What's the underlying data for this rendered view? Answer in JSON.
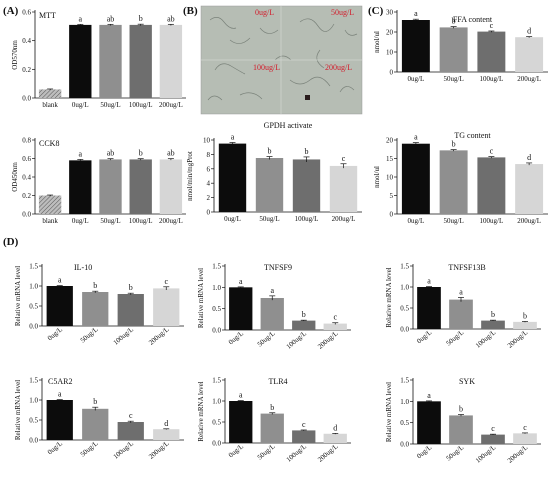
{
  "figure": {
    "panel_labels": [
      "(A)",
      "(B)",
      "(C)",
      "(D)"
    ],
    "micrograph": {
      "labels": [
        "0ug/L",
        "50ug/L",
        "100ug/L",
        "200ug/L"
      ],
      "label_color": "#d21d2c",
      "background": "#b6bdb4"
    },
    "colors": {
      "blank": "#c9c9c9",
      "bar0": "#0c0c0c",
      "bar1": "#8f8f8f",
      "bar2": "#6e6e6e",
      "bar3": "#d6d6d6"
    }
  },
  "chart_data": [
    {
      "id": "mtt",
      "type": "bar",
      "title": "MTT",
      "xlabel": "",
      "ylabel": "OD570nm",
      "categories": [
        "blank",
        "0ug/L",
        "50ug/L",
        "100ug/L",
        "200ug/L"
      ],
      "values": [
        0.06,
        0.51,
        0.51,
        0.51,
        0.51
      ],
      "errors": [
        0.003,
        0.004,
        0.004,
        0.005,
        0.004
      ],
      "letters": [
        "",
        "a",
        "ab",
        "b",
        "ab"
      ],
      "ylim": [
        0,
        0.6
      ],
      "yticks": [
        "0.0",
        "0.2",
        "0.4",
        "0.6"
      ],
      "yticks_values": [
        0,
        0.2,
        0.4,
        0.6
      ],
      "legend": "none"
    },
    {
      "id": "cck8",
      "type": "bar",
      "title": "CCK8",
      "xlabel": "",
      "ylabel": "OD450nm",
      "categories": [
        "blank",
        "0ug/L",
        "50ug/L",
        "100ug/L",
        "200ug/L"
      ],
      "values": [
        0.2,
        0.58,
        0.59,
        0.59,
        0.59
      ],
      "errors": [
        0.005,
        0.01,
        0.008,
        0.008,
        0.008
      ],
      "letters": [
        "",
        "a",
        "ab",
        "b",
        "ab"
      ],
      "ylim": [
        0,
        0.8
      ],
      "yticks": [
        "0.0",
        "0.2",
        "0.4",
        "0.6",
        "0.8"
      ],
      "yticks_values": [
        0,
        0.2,
        0.4,
        0.6,
        0.8
      ],
      "legend": "none"
    },
    {
      "id": "ffa",
      "type": "bar",
      "title": "FFA content",
      "xlabel": "",
      "ylabel": "nmol/ul",
      "categories": [
        "0ug/L",
        "50ug/L",
        "100ug/L",
        "200ug/L"
      ],
      "values": [
        26,
        22.3,
        20.2,
        17.4
      ],
      "errors": [
        0.4,
        0.4,
        0.3,
        0.3
      ],
      "letters": [
        "a",
        "b",
        "c",
        "d"
      ],
      "ylim": [
        0,
        30
      ],
      "yticks": [
        "0",
        "10",
        "20",
        "30"
      ],
      "yticks_values": [
        0,
        10,
        20,
        30
      ],
      "legend": "none"
    },
    {
      "id": "gpdh",
      "type": "bar",
      "title": "GPDH activate",
      "xlabel": "",
      "ylabel": "nmol/min/mgProt",
      "categories": [
        "0ug/L",
        "50ug/L",
        "100ug/L",
        "200ug/L"
      ],
      "values": [
        9.5,
        7.5,
        7.3,
        6.4
      ],
      "errors": [
        0.15,
        0.2,
        0.35,
        0.3
      ],
      "letters": [
        "a",
        "b",
        "b",
        "c"
      ],
      "ylim": [
        0,
        10
      ],
      "yticks": [
        "0",
        "2",
        "4",
        "6",
        "8",
        "10"
      ],
      "yticks_values": [
        0,
        2,
        4,
        6,
        8,
        10
      ],
      "legend": "none"
    },
    {
      "id": "tg",
      "type": "bar",
      "title": "TG content",
      "xlabel": "",
      "ylabel": "nmol/ul",
      "categories": [
        "0ug/L",
        "50ug/L",
        "100ug/L",
        "200ug/L"
      ],
      "values": [
        19,
        17.2,
        15.3,
        13.5
      ],
      "errors": [
        0.3,
        0.2,
        0.2,
        0.3
      ],
      "letters": [
        "a",
        "b",
        "c",
        "d"
      ],
      "ylim": [
        0,
        20
      ],
      "yticks": [
        "0",
        "5",
        "10",
        "15",
        "20"
      ],
      "yticks_values": [
        0,
        5,
        10,
        15,
        20
      ],
      "legend": "none"
    },
    {
      "id": "il10",
      "type": "bar",
      "title": "IL-10",
      "xlabel": "",
      "ylabel": "Relative mRNA level",
      "categories": [
        "0ug/L",
        "50ug/L",
        "100ug/L",
        "200ug/L"
      ],
      "values": [
        1.0,
        0.85,
        0.8,
        0.94
      ],
      "errors": [
        0.01,
        0.02,
        0.02,
        0.04
      ],
      "letters": [
        "a",
        "b",
        "b",
        "c"
      ],
      "ylim": [
        0,
        1.5
      ],
      "yticks": [
        "0.0",
        "0.5",
        "1.0",
        "1.5"
      ],
      "yticks_values": [
        0,
        0.5,
        1.0,
        1.5
      ],
      "legend": "none"
    },
    {
      "id": "tnfsf9",
      "type": "bar",
      "title": "TNFSF9",
      "xlabel": "",
      "ylabel": "Relative mRNA level",
      "categories": [
        "0ug/L",
        "50ug/L",
        "100ug/L",
        "200ug/L"
      ],
      "values": [
        1.0,
        0.75,
        0.22,
        0.15
      ],
      "errors": [
        0.01,
        0.05,
        0.01,
        0.02
      ],
      "letters": [
        "a",
        "a",
        "b",
        "c"
      ],
      "ylim": [
        0,
        1.5
      ],
      "yticks": [
        "0.0",
        "0.5",
        "1.0",
        "1.5"
      ],
      "yticks_values": [
        0,
        0.5,
        1.0,
        1.5
      ],
      "legend": "none"
    },
    {
      "id": "tnfsf13b",
      "type": "bar",
      "title": "TNFSF13B",
      "xlabel": "",
      "ylabel": "Relative mRNA level",
      "categories": [
        "0ug/L",
        "50ug/L",
        "100ug/L",
        "200ug/L"
      ],
      "values": [
        1.0,
        0.7,
        0.2,
        0.17
      ],
      "errors": [
        0.01,
        0.05,
        0.01,
        0.01
      ],
      "letters": [
        "a",
        "a",
        "b",
        "b"
      ],
      "ylim": [
        0,
        1.5
      ],
      "yticks": [
        "0.0",
        "0.5",
        "1.0",
        "1.5"
      ],
      "yticks_values": [
        0,
        0.5,
        1.0,
        1.5
      ],
      "legend": "none"
    },
    {
      "id": "c5ar2",
      "type": "bar",
      "title": "C5AR2",
      "xlabel": "",
      "ylabel": "Relative mRNA level",
      "categories": [
        "0ug/L",
        "50ug/L",
        "100ug/L",
        "200ug/L"
      ],
      "values": [
        1.0,
        0.78,
        0.45,
        0.27
      ],
      "errors": [
        0.01,
        0.04,
        0.02,
        0.01
      ],
      "letters": [
        "a",
        "b",
        "c",
        "d"
      ],
      "ylim": [
        0,
        1.5
      ],
      "yticks": [
        "0.0",
        "0.5",
        "1.0",
        "1.5"
      ],
      "yticks_values": [
        0,
        0.5,
        1.0,
        1.5
      ],
      "legend": "none"
    },
    {
      "id": "tlr4",
      "type": "bar",
      "title": "TLR4",
      "xlabel": "",
      "ylabel": "Relative mRNA level",
      "categories": [
        "0ug/L",
        "50ug/L",
        "100ug/L",
        "200ug/L"
      ],
      "values": [
        1.0,
        0.7,
        0.3,
        0.22
      ],
      "errors": [
        0.01,
        0.02,
        0.01,
        0.01
      ],
      "letters": [
        "a",
        "b",
        "c",
        "d"
      ],
      "ylim": [
        0,
        1.5
      ],
      "yticks": [
        "0.0",
        "0.5",
        "1.0",
        "1.5"
      ],
      "yticks_values": [
        0,
        0.5,
        1.0,
        1.5
      ],
      "legend": "none"
    },
    {
      "id": "syk",
      "type": "bar",
      "title": "SYK",
      "xlabel": "",
      "ylabel": "Relative mRNA level",
      "categories": [
        "0ug/L",
        "50ug/L",
        "100ug/L",
        "200ug/L"
      ],
      "values": [
        1.0,
        0.67,
        0.22,
        0.25
      ],
      "errors": [
        0.01,
        0.02,
        0.01,
        0.01
      ],
      "letters": [
        "a",
        "b",
        "c",
        "c"
      ],
      "ylim": [
        0,
        1.5
      ],
      "yticks": [
        "0.0",
        "0.5",
        "1.0",
        "1.5"
      ],
      "yticks_values": [
        0,
        0.5,
        1.0,
        1.5
      ],
      "legend": "none"
    }
  ]
}
